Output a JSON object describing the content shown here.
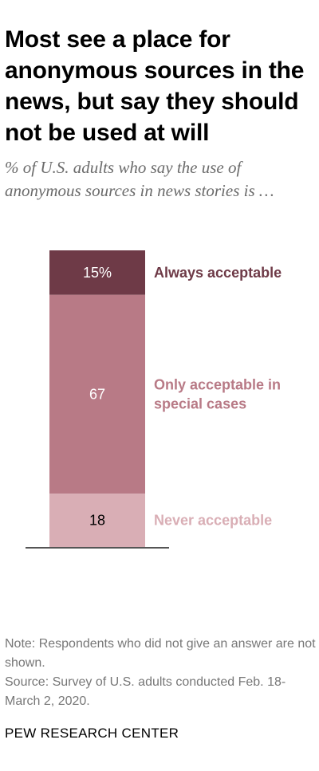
{
  "title": "Most see a place for anonymous sources in the news, but say they should not be used at will",
  "subtitle": "% of U.S. adults who say the use of anonymous sources in news stories is …",
  "chart_data": {
    "type": "bar",
    "stacked": true,
    "orientation": "vertical",
    "unit": "%",
    "ylim": [
      0,
      100
    ],
    "grid": false,
    "legend": "direct-labels-right",
    "segments": [
      {
        "name": "Always acceptable",
        "value": 15,
        "label": "15%",
        "color": "#6e3a47",
        "label_color": "#6e3a47",
        "text_color": "#ffffff"
      },
      {
        "name": "Only acceptable in special cases",
        "lines": [
          "Only acceptable in",
          "special cases"
        ],
        "value": 67,
        "label": "67",
        "color": "#b87a86",
        "label_color": "#b87a86",
        "text_color": "#ffffff"
      },
      {
        "name": "Never acceptable",
        "value": 18,
        "label": "18",
        "color": "#d9aeb5",
        "label_color": "#d9aeb5",
        "text_color": "#000000"
      }
    ]
  },
  "notes": {
    "note": "Note: Respondents who did not give an answer are not shown.",
    "source": "Source: Survey of U.S. adults conducted Feb. 18-March 2, 2020."
  },
  "brand": "PEW RESEARCH CENTER"
}
